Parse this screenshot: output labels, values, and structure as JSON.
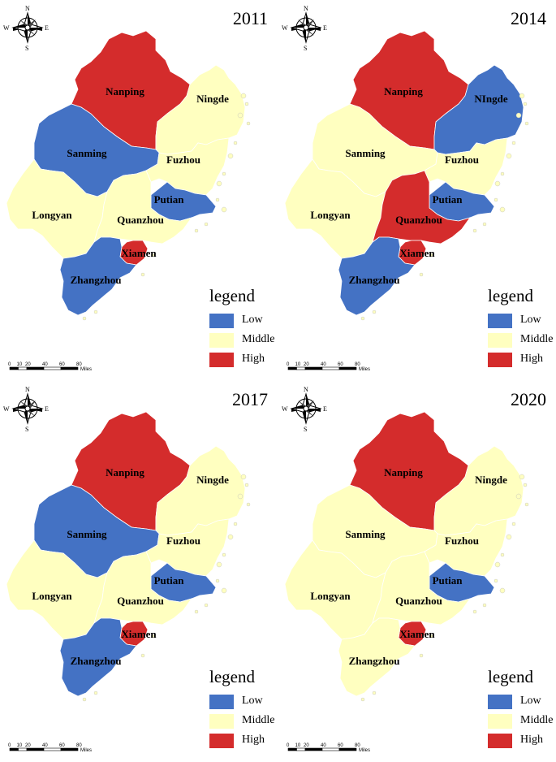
{
  "colors": {
    "low": "#4472c4",
    "middle": "#ffffc0",
    "high": "#d42c2c"
  },
  "legend": {
    "title": "legend",
    "items": [
      {
        "key": "low",
        "label": "Low"
      },
      {
        "key": "middle",
        "label": "Middle"
      },
      {
        "key": "high",
        "label": "High"
      }
    ]
  },
  "compass": {
    "n": "N",
    "s": "S",
    "e": "E",
    "w": "W"
  },
  "scale": {
    "ticks": [
      "0",
      "10",
      "20",
      "40",
      "60",
      "80"
    ],
    "unit": "Miles"
  },
  "panels": [
    {
      "year": "2011",
      "regions": {
        "nanping": {
          "name": "Nanping",
          "level": "high"
        },
        "ningde": {
          "name": "Ningde",
          "level": "middle"
        },
        "sanming": {
          "name": "Sanming",
          "level": "low"
        },
        "fuzhou": {
          "name": "Fuzhou",
          "level": "middle"
        },
        "putian": {
          "name": "Putian",
          "level": "low"
        },
        "longyan": {
          "name": "Longyan",
          "level": "middle"
        },
        "quanzhou": {
          "name": "Quanzhou",
          "level": "middle"
        },
        "xiamen": {
          "name": "Xiamen",
          "level": "high"
        },
        "zhangzhou": {
          "name": "Zhangzhou",
          "level": "low"
        }
      }
    },
    {
      "year": "2014",
      "regions": {
        "nanping": {
          "name": "Nanping",
          "level": "high"
        },
        "ningde": {
          "name": "NIngde",
          "level": "low"
        },
        "sanming": {
          "name": "Sanming",
          "level": "middle"
        },
        "fuzhou": {
          "name": "Fuzhou",
          "level": "middle"
        },
        "putian": {
          "name": "Putian",
          "level": "low"
        },
        "longyan": {
          "name": "Longyan",
          "level": "middle"
        },
        "quanzhou": {
          "name": "Quanzhou",
          "level": "high"
        },
        "xiamen": {
          "name": "Xiamen",
          "level": "high"
        },
        "zhangzhou": {
          "name": "Zhangzhou",
          "level": "low"
        }
      }
    },
    {
      "year": "2017",
      "regions": {
        "nanping": {
          "name": "Nanping",
          "level": "high"
        },
        "ningde": {
          "name": "Ningde",
          "level": "middle"
        },
        "sanming": {
          "name": "Sanming",
          "level": "low"
        },
        "fuzhou": {
          "name": "Fuzhou",
          "level": "middle"
        },
        "putian": {
          "name": "Putian",
          "level": "low"
        },
        "longyan": {
          "name": "Longyan",
          "level": "middle"
        },
        "quanzhou": {
          "name": "Quanzhou",
          "level": "middle"
        },
        "xiamen": {
          "name": "Xiamen",
          "level": "high"
        },
        "zhangzhou": {
          "name": "Zhangzhou",
          "level": "low"
        }
      }
    },
    {
      "year": "2020",
      "regions": {
        "nanping": {
          "name": "Nanping",
          "level": "high"
        },
        "ningde": {
          "name": "Ningde",
          "level": "middle"
        },
        "sanming": {
          "name": "Sanming",
          "level": "middle"
        },
        "fuzhou": {
          "name": "Fuzhou",
          "level": "middle"
        },
        "putian": {
          "name": "Putian",
          "level": "low"
        },
        "longyan": {
          "name": "Longyan",
          "level": "middle"
        },
        "quanzhou": {
          "name": "Quanzhou",
          "level": "middle"
        },
        "xiamen": {
          "name": "Xiamen",
          "level": "high"
        },
        "zhangzhou": {
          "name": "Zhangzhou",
          "level": "middle"
        }
      }
    }
  ]
}
